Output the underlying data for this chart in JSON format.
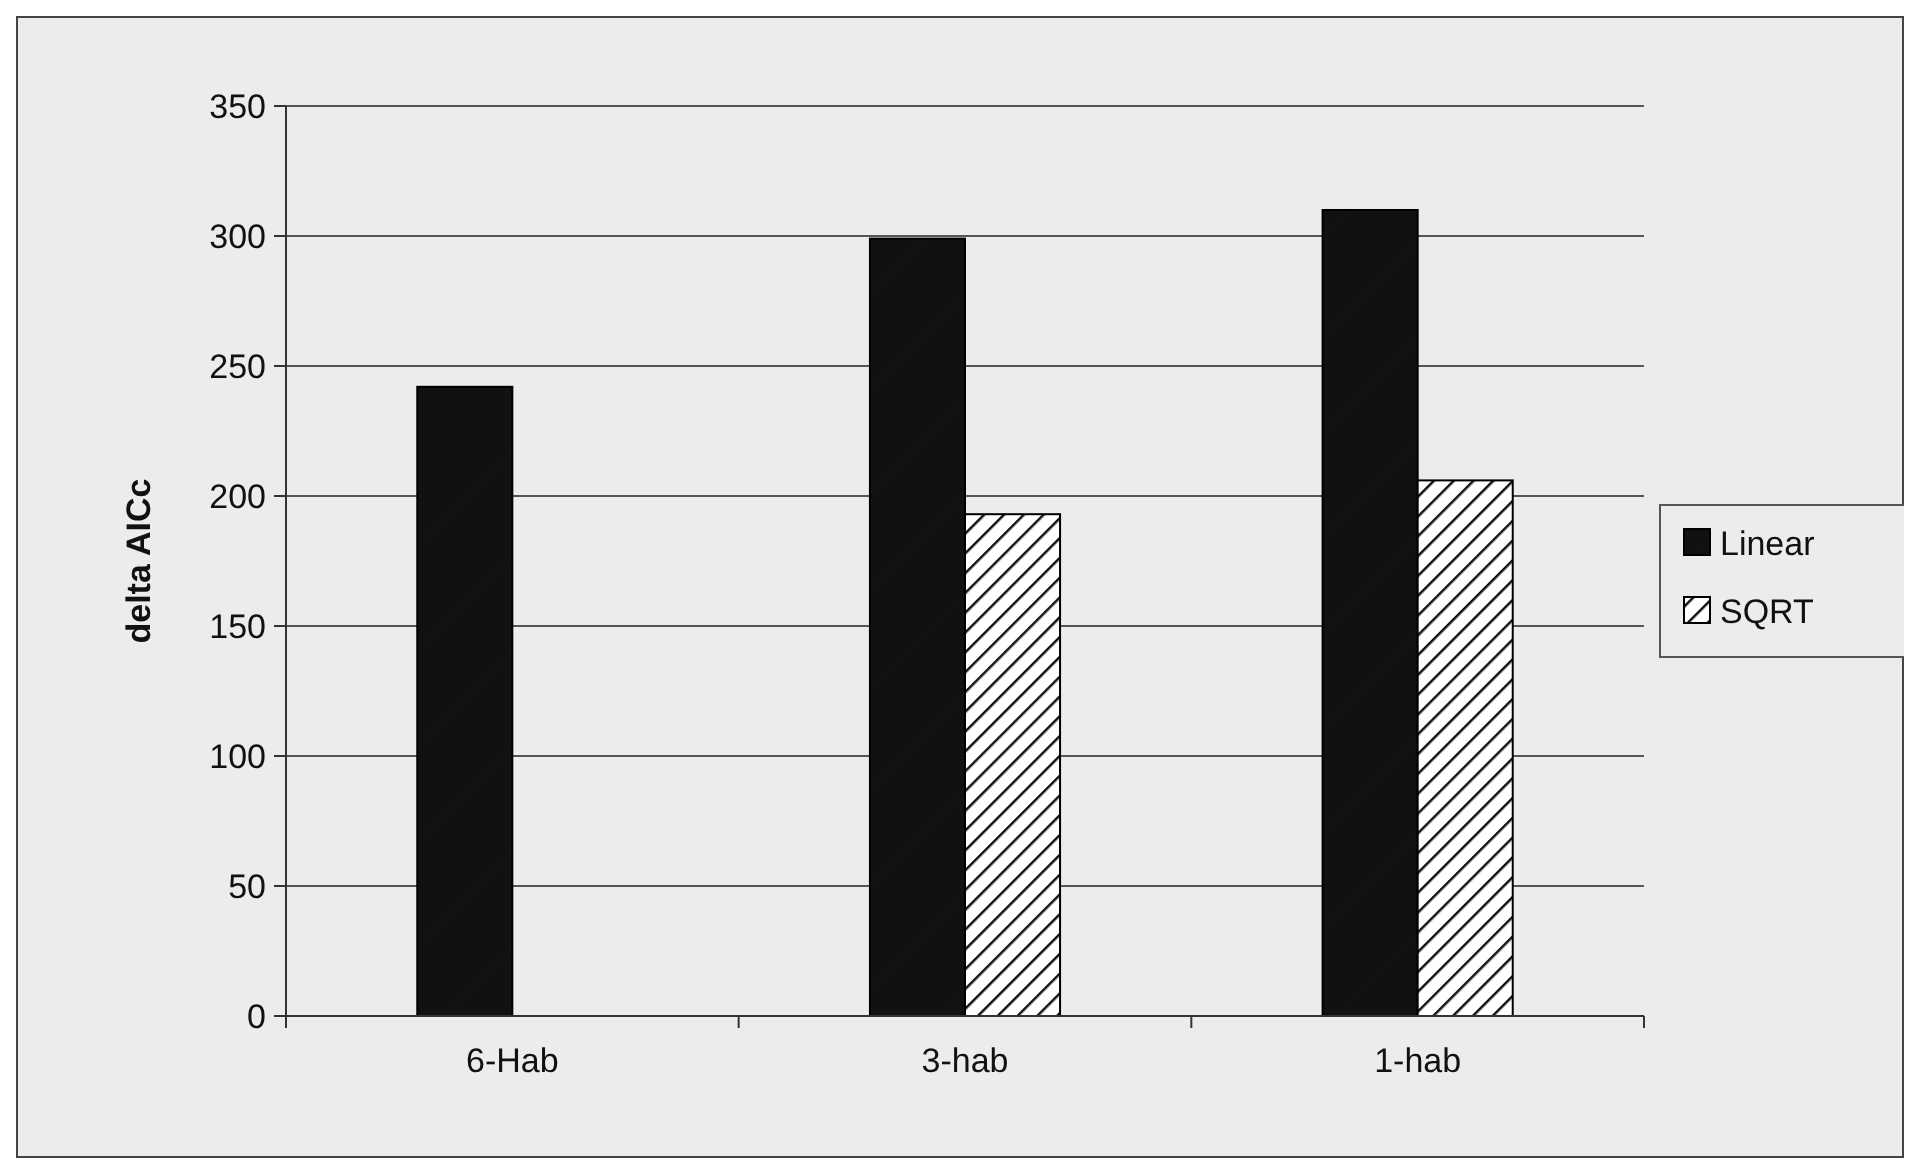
{
  "chart_data": {
    "type": "bar",
    "ylabel": "delta AICc",
    "categories": [
      "6-Hab",
      "3-hab",
      "1-hab"
    ],
    "series": [
      {
        "name": "Linear",
        "color": "#111111",
        "values": [
          242,
          299,
          310
        ]
      },
      {
        "name": "SQRT",
        "color": "#ffffff",
        "values": [
          null,
          193,
          206
        ]
      }
    ],
    "ylim": [
      0,
      350
    ],
    "yticks": [
      0,
      50,
      100,
      150,
      200,
      250,
      300,
      350
    ],
    "grid": "y",
    "legend": "right"
  }
}
